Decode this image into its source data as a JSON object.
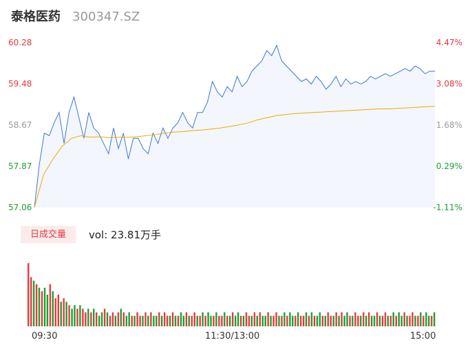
{
  "header": {
    "name": "泰格医药",
    "code": "300347.SZ"
  },
  "colors": {
    "up": "#e8383d",
    "down": "#1aa033",
    "neutral": "#999999",
    "price_line": "#3a78d8",
    "avg_line": "#f0a800"
  },
  "volume": {
    "tag": "日成交量",
    "text": "vol: 23.81万手"
  },
  "chart_data": [
    {
      "type": "line",
      "title": "",
      "y_left_ticks": [
        "60.28",
        "59.48",
        "58.67",
        "57.87",
        "57.06"
      ],
      "y_right_ticks": [
        "4.47%",
        "3.08%",
        "1.68%",
        "0.29%",
        "-1.11%"
      ],
      "ylim": [
        57.06,
        60.28
      ],
      "x_ticks": [
        "09:30",
        "11:30/13:00",
        "15:00"
      ],
      "series": [
        {
          "values": [
            57.06,
            57.9,
            58.5,
            58.45,
            58.7,
            58.9,
            58.3,
            58.9,
            59.2,
            58.8,
            58.4,
            58.9,
            58.6,
            58.5,
            58.3,
            58.1,
            58.6,
            58.2,
            58.5,
            58.0,
            58.4,
            58.4,
            58.2,
            58.1,
            58.5,
            58.3,
            58.6,
            58.4,
            58.6,
            58.7,
            58.9,
            58.7,
            58.6,
            58.9,
            58.9,
            59.1,
            59.5,
            59.3,
            59.2,
            59.4,
            59.3,
            59.6,
            59.4,
            59.5,
            59.7,
            59.8,
            59.9,
            60.1,
            60.0,
            60.2,
            59.9,
            59.8,
            59.7,
            59.6,
            59.5,
            59.55,
            59.45,
            59.6,
            59.5,
            59.35,
            59.45,
            59.6,
            59.4,
            59.55,
            59.45,
            59.5,
            59.45,
            59.5,
            59.6,
            59.55,
            59.6,
            59.65,
            59.6,
            59.65,
            59.7,
            59.75,
            59.7,
            59.8,
            59.75,
            59.65,
            59.7,
            59.7
          ]
        },
        {
          "values": [
            57.06,
            57.7,
            58.0,
            58.25,
            58.4,
            58.45,
            58.42,
            58.43,
            58.41,
            58.42,
            58.42,
            58.43,
            58.45,
            58.47,
            58.5,
            58.52,
            58.53,
            58.55,
            58.56,
            58.58,
            58.6,
            58.63,
            58.66,
            58.7,
            58.76,
            58.8,
            58.84,
            58.86,
            58.88,
            58.89,
            58.9,
            58.91,
            58.92,
            58.93,
            58.94,
            58.95,
            58.96,
            58.97,
            58.97,
            58.98,
            58.99,
            59.0,
            59.01,
            59.02
          ]
        }
      ]
    },
    {
      "type": "bar",
      "title": "",
      "values": [
        18,
        14,
        13,
        12,
        11,
        10,
        11,
        9,
        12,
        10,
        8,
        9,
        7,
        8,
        7,
        6,
        5,
        6,
        5,
        6,
        5,
        4,
        5,
        4,
        5,
        4,
        3,
        4,
        5,
        4,
        3,
        4,
        3,
        4,
        5,
        4,
        3,
        4,
        3,
        3,
        4,
        3,
        3,
        4,
        3,
        4,
        3,
        3,
        4,
        3,
        4,
        3,
        3,
        4,
        3,
        3,
        4,
        3,
        4,
        3,
        3,
        4,
        3,
        3,
        4,
        3,
        4,
        3,
        3,
        4,
        3,
        3,
        4,
        3,
        3,
        4,
        3,
        4,
        3,
        3,
        4,
        3,
        3,
        4,
        3,
        4,
        3,
        3,
        4,
        3,
        3,
        4,
        3,
        3,
        4,
        3,
        4,
        3,
        3,
        4,
        3,
        3,
        4,
        3,
        4,
        3,
        3,
        4,
        3,
        3,
        4,
        3,
        3,
        4,
        3,
        4,
        3,
        4,
        3,
        3,
        4,
        3,
        3,
        4,
        3,
        4,
        3,
        3,
        4,
        3,
        3,
        4,
        3,
        3,
        4,
        3,
        4,
        3,
        4,
        3,
        3,
        4,
        3,
        3,
        4,
        3,
        4,
        3,
        3,
        4
      ],
      "colors_pattern": [
        "up",
        "up",
        "down",
        "up",
        "down",
        "up",
        "down",
        "down",
        "up",
        "down"
      ]
    }
  ]
}
